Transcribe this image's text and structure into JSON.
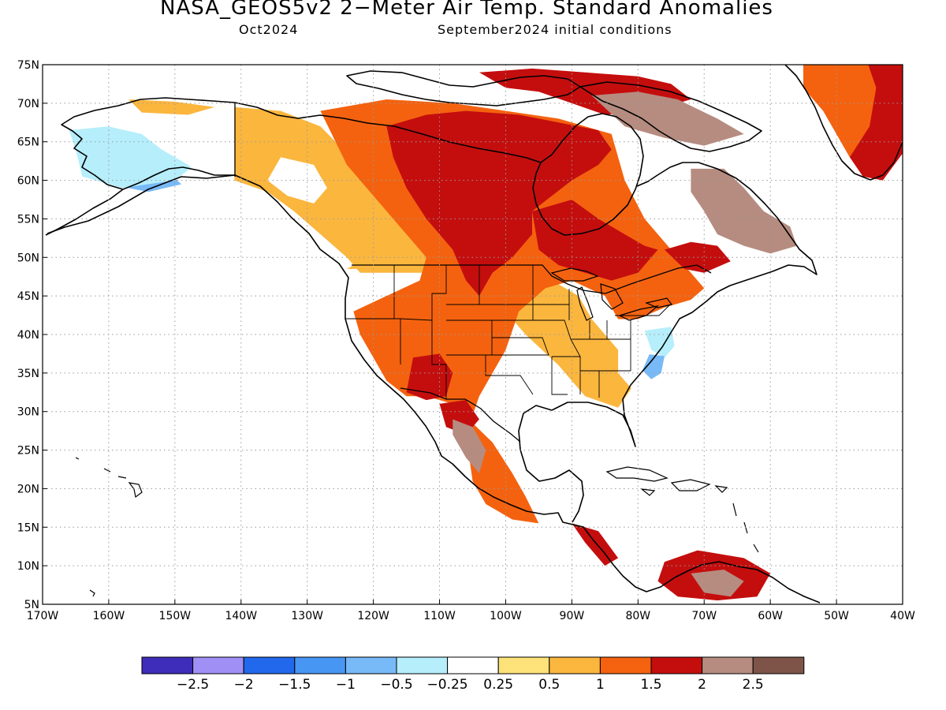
{
  "header": {
    "title": "NASA_GEOS5v2 2−Meter Air Temp. Standard Anomalies",
    "forecast_month": "Oct2024",
    "initial_conditions": "September2024 initial conditions"
  },
  "map": {
    "region": "North America",
    "projection": "lat-lon",
    "lon_range": [
      -170,
      -40
    ],
    "lat_range": [
      5,
      75
    ],
    "gridlines": "dotted",
    "lat_ticks": [
      {
        "value": 75,
        "label": "75N"
      },
      {
        "value": 70,
        "label": "70N"
      },
      {
        "value": 65,
        "label": "65N"
      },
      {
        "value": 60,
        "label": "60N"
      },
      {
        "value": 55,
        "label": "55N"
      },
      {
        "value": 50,
        "label": "50N"
      },
      {
        "value": 45,
        "label": "45N"
      },
      {
        "value": 40,
        "label": "40N"
      },
      {
        "value": 35,
        "label": "35N"
      },
      {
        "value": 30,
        "label": "30N"
      },
      {
        "value": 25,
        "label": "25N"
      },
      {
        "value": 20,
        "label": "20N"
      },
      {
        "value": 15,
        "label": "15N"
      },
      {
        "value": 10,
        "label": "10N"
      },
      {
        "value": 5,
        "label": "5N"
      }
    ],
    "lon_ticks": [
      {
        "value": -170,
        "label": "170W"
      },
      {
        "value": -160,
        "label": "160W"
      },
      {
        "value": -150,
        "label": "150W"
      },
      {
        "value": -140,
        "label": "140W"
      },
      {
        "value": -130,
        "label": "130W"
      },
      {
        "value": -120,
        "label": "120W"
      },
      {
        "value": -110,
        "label": "110W"
      },
      {
        "value": -100,
        "label": "100W"
      },
      {
        "value": -90,
        "label": "90W"
      },
      {
        "value": -80,
        "label": "80W"
      },
      {
        "value": -70,
        "label": "70W"
      },
      {
        "value": -60,
        "label": "60W"
      },
      {
        "value": -50,
        "label": "50W"
      },
      {
        "value": -40,
        "label": "40W"
      }
    ],
    "anomaly_regions": [
      {
        "name": "alaska-interior",
        "level": "-1",
        "poly": [
          [
            -163,
            61
          ],
          [
            -156,
            61.5
          ],
          [
            -151,
            61
          ],
          [
            -149,
            59.5
          ],
          [
            -154,
            58.5
          ],
          [
            -160,
            59.5
          ],
          [
            -163,
            60.5
          ]
        ]
      },
      {
        "name": "alaska-west",
        "level": "-0.5",
        "poly": [
          [
            -166,
            66.5
          ],
          [
            -160,
            67
          ],
          [
            -155,
            66
          ],
          [
            -152,
            64
          ],
          [
            -147,
            62
          ],
          [
            -150,
            60
          ],
          [
            -158,
            59
          ],
          [
            -164,
            60.5
          ],
          [
            -165,
            64
          ]
        ]
      },
      {
        "name": "alaska-north",
        "level": "0.25",
        "poly": [
          [
            -160,
            71
          ],
          [
            -150,
            70.8
          ],
          [
            -142,
            69.5
          ],
          [
            -141,
            60
          ],
          [
            -146,
            60.5
          ],
          [
            -148,
            62
          ],
          [
            -152,
            64
          ],
          [
            -155,
            66
          ],
          [
            -160,
            67
          ],
          [
            -165,
            68.5
          ]
        ]
      },
      {
        "name": "alaska-north-slope",
        "level": "0.5",
        "poly": [
          [
            -157,
            70.5
          ],
          [
            -150,
            70.2
          ],
          [
            -144,
            69.5
          ],
          [
            -148,
            68.5
          ],
          [
            -155,
            68.8
          ]
        ]
      },
      {
        "name": "yukon-bc",
        "level": "0.5",
        "poly": [
          [
            -141,
            69.5
          ],
          [
            -134,
            69
          ],
          [
            -128,
            67
          ],
          [
            -120,
            60
          ],
          [
            -114,
            53
          ],
          [
            -112,
            48
          ],
          [
            -122,
            48
          ],
          [
            -124,
            50
          ],
          [
            -128,
            53
          ],
          [
            -132,
            56
          ],
          [
            -136,
            58.5
          ],
          [
            -141,
            60
          ]
        ]
      },
      {
        "name": "bc-coast-white",
        "level": "0.25",
        "poly": [
          [
            -134,
            63
          ],
          [
            -129,
            62
          ],
          [
            -127,
            59
          ],
          [
            -129,
            57
          ],
          [
            -133,
            58
          ],
          [
            -136,
            60
          ]
        ]
      },
      {
        "name": "western-us",
        "level": "0.5",
        "poly": [
          [
            -124,
            48.5
          ],
          [
            -112,
            48.5
          ],
          [
            -110,
            46
          ],
          [
            -105,
            45
          ],
          [
            -100,
            43
          ],
          [
            -97,
            40
          ],
          [
            -92,
            36
          ],
          [
            -88,
            32
          ],
          [
            -83,
            30.5
          ],
          [
            -81,
            33
          ],
          [
            -82,
            37
          ],
          [
            -85,
            40
          ],
          [
            -87,
            42
          ],
          [
            -89,
            45
          ],
          [
            -95,
            48
          ],
          [
            -97,
            49.5
          ],
          [
            -110,
            49.5
          ],
          [
            -114,
            52
          ],
          [
            -118,
            50
          ],
          [
            -123,
            49
          ]
        ]
      },
      {
        "name": "arctic-canada-orange",
        "level": "1.5",
        "poly": [
          [
            -128,
            69
          ],
          [
            -118,
            70.5
          ],
          [
            -108,
            70
          ],
          [
            -100,
            69
          ],
          [
            -92,
            68
          ],
          [
            -84,
            66
          ],
          [
            -82,
            60
          ],
          [
            -79,
            55
          ],
          [
            -76,
            52
          ],
          [
            -72,
            48
          ],
          [
            -70,
            46
          ],
          [
            -72,
            44.5
          ],
          [
            -76,
            43.5
          ],
          [
            -80,
            42
          ],
          [
            -83,
            42
          ],
          [
            -85,
            45
          ],
          [
            -90,
            47
          ],
          [
            -94,
            46
          ],
          [
            -98,
            43
          ],
          [
            -100,
            38
          ],
          [
            -104,
            32
          ],
          [
            -106,
            27
          ],
          [
            -105,
            21
          ],
          [
            -103,
            18
          ],
          [
            -99,
            16
          ],
          [
            -95,
            15.5
          ],
          [
            -97,
            19
          ],
          [
            -99,
            22
          ],
          [
            -102,
            26
          ],
          [
            -108,
            31
          ],
          [
            -112,
            32
          ],
          [
            -115,
            32
          ],
          [
            -118,
            34
          ],
          [
            -120,
            37
          ],
          [
            -122,
            40
          ],
          [
            -123,
            43
          ],
          [
            -118,
            45
          ],
          [
            -113,
            47
          ],
          [
            -112,
            50
          ],
          [
            -115,
            53
          ],
          [
            -120,
            58
          ],
          [
            -124,
            62
          ]
        ]
      },
      {
        "name": "canada-red-north",
        "level": "2",
        "poly": [
          [
            -118,
            67
          ],
          [
            -112,
            68.5
          ],
          [
            -106,
            69
          ],
          [
            -98,
            68.5
          ],
          [
            -92,
            67.5
          ],
          [
            -86,
            66.5
          ],
          [
            -84,
            64
          ],
          [
            -86,
            62
          ],
          [
            -90,
            60
          ],
          [
            -93,
            58
          ],
          [
            -96,
            56
          ],
          [
            -96,
            53
          ],
          [
            -99,
            50
          ],
          [
            -102,
            48
          ],
          [
            -104,
            45
          ],
          [
            -106,
            47
          ],
          [
            -108,
            51
          ],
          [
            -112,
            55
          ],
          [
            -115,
            59
          ],
          [
            -117,
            63
          ]
        ]
      },
      {
        "name": "hudson-bay-area",
        "level": "2",
        "poly": [
          [
            -96,
            56
          ],
          [
            -90,
            57.5
          ],
          [
            -86,
            55
          ],
          [
            -82,
            53
          ],
          [
            -79,
            51.5
          ],
          [
            -77,
            51
          ],
          [
            -80,
            48
          ],
          [
            -84,
            47
          ],
          [
            -88,
            48
          ],
          [
            -92,
            49
          ],
          [
            -95,
            51
          ]
        ]
      },
      {
        "name": "arctic-islands-red",
        "level": "2",
        "poly": [
          [
            -104,
            74
          ],
          [
            -96,
            74.5
          ],
          [
            -88,
            74
          ],
          [
            -80,
            73.5
          ],
          [
            -75,
            72.5
          ],
          [
            -72,
            70.5
          ],
          [
            -78,
            69
          ],
          [
            -85,
            68.5
          ],
          [
            -90,
            70
          ],
          [
            -95,
            71.5
          ],
          [
            -100,
            72
          ]
        ]
      },
      {
        "name": "quebec-east-red",
        "level": "2",
        "poly": [
          [
            -76,
            51
          ],
          [
            -72,
            52
          ],
          [
            -68,
            51.5
          ],
          [
            -66,
            49.5
          ],
          [
            -70,
            48
          ],
          [
            -73,
            48.5
          ]
        ]
      },
      {
        "name": "southwest-red",
        "level": "2",
        "poly": [
          [
            -114,
            37
          ],
          [
            -110,
            37.5
          ],
          [
            -108,
            35
          ],
          [
            -109,
            32
          ],
          [
            -112,
            31.5
          ],
          [
            -115,
            32.5
          ]
        ]
      },
      {
        "name": "mexico-north-red",
        "level": "2",
        "poly": [
          [
            -110,
            31
          ],
          [
            -106,
            31.5
          ],
          [
            -104,
            29
          ],
          [
            -106,
            27
          ],
          [
            -109,
            28
          ]
        ]
      },
      {
        "name": "mexico-sierra-mauve",
        "level": "2.5",
        "poly": [
          [
            -108,
            29
          ],
          [
            -105,
            28
          ],
          [
            -103,
            25
          ],
          [
            -104,
            22
          ],
          [
            -106,
            24
          ],
          [
            -108,
            27
          ]
        ]
      },
      {
        "name": "baffin-mauve",
        "level": "2.5",
        "poly": [
          [
            -87,
            71
          ],
          [
            -80,
            71.5
          ],
          [
            -74,
            70.5
          ],
          [
            -68,
            68
          ],
          [
            -64,
            66
          ],
          [
            -70,
            64.5
          ],
          [
            -76,
            65.5
          ],
          [
            -82,
            67
          ]
        ]
      },
      {
        "name": "labrador-mauve",
        "level": "2.5",
        "poly": [
          [
            -72,
            61.5
          ],
          [
            -67,
            61.5
          ],
          [
            -64,
            59
          ],
          [
            -61,
            56
          ],
          [
            -57,
            54
          ],
          [
            -56,
            51.5
          ],
          [
            -60,
            50.5
          ],
          [
            -64,
            51.5
          ],
          [
            -68,
            53
          ],
          [
            -70,
            56
          ],
          [
            -72,
            58.5
          ]
        ]
      },
      {
        "name": "greenland-red",
        "level": "2",
        "poly": [
          [
            -55,
            77
          ],
          [
            -40,
            77
          ],
          [
            -40,
            63.5
          ],
          [
            -43,
            60
          ],
          [
            -46,
            60.5
          ],
          [
            -48,
            63
          ],
          [
            -50,
            66
          ],
          [
            -52,
            69
          ],
          [
            -55,
            72
          ]
        ]
      },
      {
        "name": "greenland-orange",
        "level": "1.5",
        "poly": [
          [
            -55,
            77
          ],
          [
            -46,
            77
          ],
          [
            -44,
            72
          ],
          [
            -45,
            67
          ],
          [
            -48,
            63
          ],
          [
            -50,
            66
          ],
          [
            -52,
            69
          ],
          [
            -55,
            72
          ]
        ]
      },
      {
        "name": "midatlantic-cool",
        "level": "-0.5",
        "poly": [
          [
            -79,
            40.5
          ],
          [
            -75,
            41
          ],
          [
            -74.5,
            38.5
          ],
          [
            -76,
            37
          ],
          [
            -78,
            38
          ]
        ]
      },
      {
        "name": "carolina-cool",
        "level": "-1",
        "poly": [
          [
            -79,
            37.5
          ],
          [
            -76,
            37.2
          ],
          [
            -76.5,
            35
          ],
          [
            -78,
            34.2
          ],
          [
            -79.5,
            35.5
          ]
        ]
      },
      {
        "name": "appalachia-white",
        "level": "0.25",
        "poly": [
          [
            -82,
            40
          ],
          [
            -79,
            40.5
          ],
          [
            -78,
            38
          ],
          [
            -79.5,
            35
          ],
          [
            -81,
            33
          ],
          [
            -83,
            35
          ],
          [
            -83,
            38
          ]
        ]
      },
      {
        "name": "venezuela-red",
        "level": "2",
        "poly": [
          [
            -76,
            10.5
          ],
          [
            -71,
            12
          ],
          [
            -64,
            11
          ],
          [
            -60,
            9
          ],
          [
            -62,
            6
          ],
          [
            -68,
            5.5
          ],
          [
            -74,
            6
          ],
          [
            -77,
            8
          ]
        ]
      },
      {
        "name": "venezuela-mauve",
        "level": "2.5",
        "poly": [
          [
            -72,
            9
          ],
          [
            -67,
            9.5
          ],
          [
            -64,
            8
          ],
          [
            -66,
            6
          ],
          [
            -70,
            6.5
          ]
        ]
      },
      {
        "name": "central-america-red",
        "level": "2",
        "poly": [
          [
            -90,
            15.5
          ],
          [
            -86,
            14.5
          ],
          [
            -83,
            11
          ],
          [
            -85,
            10
          ],
          [
            -88,
            13
          ]
        ]
      }
    ]
  },
  "legend": {
    "colors": [
      "#3e2cba",
      "#a090f6",
      "#2268ec",
      "#4796f4",
      "#78b9f7",
      "#b6eefb",
      "#ffffff",
      "#fde27a",
      "#fbb63e",
      "#f4620f",
      "#c40e0e",
      "#b68c80",
      "#7e5449"
    ],
    "labels": [
      "−2.5",
      "−2",
      "−1.5",
      "−1",
      "−0.5",
      "−0.25",
      "0.25",
      "0.5",
      "1",
      "1.5",
      "2",
      "2.5"
    ]
  }
}
